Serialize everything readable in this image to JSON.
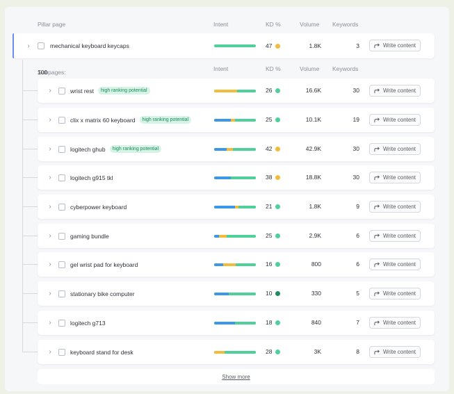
{
  "headers": {
    "pillar_page": "Pillar page",
    "intent": "Intent",
    "kd": "KD %",
    "volume": "Volume",
    "keywords": "Keywords"
  },
  "subpages": {
    "label": "Subpages:",
    "count": "100"
  },
  "colors": {
    "informational": "#3c97e8",
    "commercial": "#f2bb3b",
    "navigational": "#4fcf9a",
    "kd_easy": "#4fcf9a",
    "kd_medium": "#f2bb3b",
    "kd_hard": "#1e8a5d",
    "accent": "#6b8cf3"
  },
  "write_content_label": "Write content",
  "pillar": {
    "keyword": "mechanical keyboard keycaps",
    "intent_segments": [
      {
        "color": "#4fcf9a",
        "share": 1.0
      }
    ],
    "kd": "47",
    "kd_color": "#f2bb3b",
    "volume": "1.8K",
    "keywords": "3"
  },
  "rows": [
    {
      "keyword": "wrist rest",
      "badge": "high ranking potential",
      "intent_segments": [
        {
          "color": "#f2bb3b",
          "share": 0.55
        },
        {
          "color": "#4fcf9a",
          "share": 0.45
        }
      ],
      "kd": "26",
      "kd_color": "#4fcf9a",
      "volume": "16.6K",
      "keywords": "30"
    },
    {
      "keyword": "clix x matrix 60 keyboard",
      "badge": "high ranking potential",
      "intent_segments": [
        {
          "color": "#3c97e8",
          "share": 0.4
        },
        {
          "color": "#f2bb3b",
          "share": 0.1
        },
        {
          "color": "#4fcf9a",
          "share": 0.5
        }
      ],
      "kd": "25",
      "kd_color": "#4fcf9a",
      "volume": "10.1K",
      "keywords": "19"
    },
    {
      "keyword": "logitech ghub",
      "badge": "high ranking potential",
      "intent_segments": [
        {
          "color": "#3c97e8",
          "share": 0.3
        },
        {
          "color": "#f2bb3b",
          "share": 0.15
        },
        {
          "color": "#4fcf9a",
          "share": 0.55
        }
      ],
      "kd": "42",
      "kd_color": "#f2bb3b",
      "volume": "42.9K",
      "keywords": "30"
    },
    {
      "keyword": "logitech g915 tkl",
      "badge": "",
      "intent_segments": [
        {
          "color": "#3c97e8",
          "share": 0.4
        },
        {
          "color": "#4fcf9a",
          "share": 0.6
        }
      ],
      "kd": "38",
      "kd_color": "#f2bb3b",
      "volume": "18.8K",
      "keywords": "30"
    },
    {
      "keyword": "cyberpower keyboard",
      "badge": "",
      "intent_segments": [
        {
          "color": "#3c97e8",
          "share": 0.5
        },
        {
          "color": "#f2bb3b",
          "share": 0.08
        },
        {
          "color": "#4fcf9a",
          "share": 0.42
        }
      ],
      "kd": "21",
      "kd_color": "#4fcf9a",
      "volume": "1.8K",
      "keywords": "9"
    },
    {
      "keyword": "gaming bundle",
      "badge": "",
      "intent_segments": [
        {
          "color": "#3c97e8",
          "share": 0.12
        },
        {
          "color": "#f2bb3b",
          "share": 0.18
        },
        {
          "color": "#4fcf9a",
          "share": 0.7
        }
      ],
      "kd": "25",
      "kd_color": "#4fcf9a",
      "volume": "2.9K",
      "keywords": "6"
    },
    {
      "keyword": "gel wrist pad for keyboard",
      "badge": "",
      "intent_segments": [
        {
          "color": "#3c97e8",
          "share": 0.22
        },
        {
          "color": "#f2bb3b",
          "share": 0.3
        },
        {
          "color": "#4fcf9a",
          "share": 0.48
        }
      ],
      "kd": "16",
      "kd_color": "#4fcf9a",
      "volume": "800",
      "keywords": "6"
    },
    {
      "keyword": "stationary bike computer",
      "badge": "",
      "intent_segments": [
        {
          "color": "#3c97e8",
          "share": 0.35
        },
        {
          "color": "#4fcf9a",
          "share": 0.65
        }
      ],
      "kd": "10",
      "kd_color": "#1e8a5d",
      "volume": "330",
      "keywords": "5"
    },
    {
      "keyword": "logitech g713",
      "badge": "",
      "intent_segments": [
        {
          "color": "#3c97e8",
          "share": 0.5
        },
        {
          "color": "#4fcf9a",
          "share": 0.5
        }
      ],
      "kd": "18",
      "kd_color": "#4fcf9a",
      "volume": "840",
      "keywords": "7"
    },
    {
      "keyword": "keyboard stand for desk",
      "badge": "",
      "intent_segments": [
        {
          "color": "#f2bb3b",
          "share": 0.25
        },
        {
          "color": "#4fcf9a",
          "share": 0.75
        }
      ],
      "kd": "28",
      "kd_color": "#4fcf9a",
      "volume": "3K",
      "keywords": "8"
    }
  ],
  "show_more": "Show more"
}
